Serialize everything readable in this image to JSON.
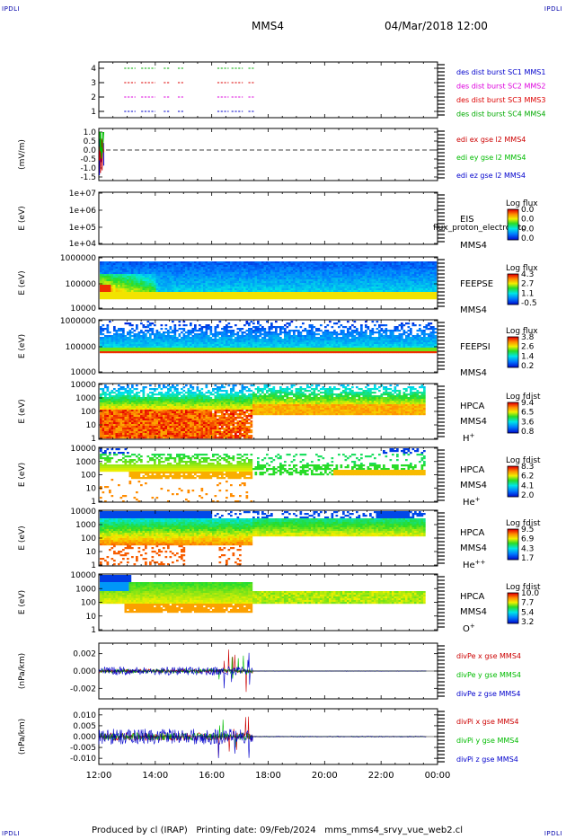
{
  "header": {
    "corner_left_top": "IPDLI",
    "corner_right_top": "IPDLI",
    "corner_left_bottom": "IPDLI",
    "corner_right_bottom": "IPDLI",
    "spacecraft": "MMS4",
    "datetime": "04/Mar/2018 12:00"
  },
  "footer": {
    "text": "Produced by cl (IRAP)   Printing date: 09/Feb/2024   mms_mms4_srvy_vue_web2.cl"
  },
  "colors": {
    "mms1": "#00aa00",
    "mms2": "#dd0000",
    "mms3": "#dd00dd",
    "mms4": "#0000cc",
    "x": "#cc0000",
    "y": "#00bb00",
    "z": "#0000cc"
  },
  "chart_data": {
    "type": "multi-panel time series",
    "x_ticks": [
      "12:00",
      "14:00",
      "16:00",
      "18:00",
      "20:00",
      "22:00",
      "00:00"
    ],
    "x_range_hours": [
      12,
      24
    ],
    "panels": [
      {
        "id": "burst",
        "yticks": [
          "4",
          "3",
          "2",
          "1"
        ],
        "legend": [
          {
            "text": "des dist burst SC1 MMS1",
            "color": "#0000cc"
          },
          {
            "text": "des dist burst SC2 MMS2",
            "color": "#dd00dd"
          },
          {
            "text": "des dist burst SC3 MMS3",
            "color": "#dd0000"
          },
          {
            "text": "des dist burst SC4 MMS4",
            "color": "#00aa00"
          }
        ],
        "burst_intervals_hours": [
          [
            12.9,
            13.3
          ],
          [
            13.5,
            14.0
          ],
          [
            14.3,
            14.5
          ],
          [
            14.8,
            15.0
          ],
          [
            16.2,
            16.6
          ],
          [
            16.7,
            17.1
          ],
          [
            17.3,
            17.5
          ]
        ]
      },
      {
        "id": "edi",
        "ylabel": "(mV/m)",
        "yticks": [
          "1.0",
          "0.5",
          "0.0",
          "-0.5",
          "-1.0",
          "-1.5"
        ],
        "ylim": [
          -1.5,
          1.0
        ],
        "legend": [
          {
            "text": "edi ex gse l2 MMS4",
            "color": "#cc0000"
          },
          {
            "text": "edi ey gse l2 MMS4",
            "color": "#00bb00"
          },
          {
            "text": "edi ez gse l2 MMS4",
            "color": "#0000cc"
          }
        ]
      },
      {
        "id": "eis",
        "ylabel": "E (eV)",
        "yticks": [
          "1e+07",
          "1e+06",
          "1e+05",
          "1e+04"
        ],
        "titles": [
          "EIS",
          "MMS4"
        ],
        "overlay": "flux_proton_electron to",
        "colorbar": {
          "title": "Log flux",
          "ticks": [
            "0.0",
            "0.0",
            "0.0",
            "0.0"
          ]
        }
      },
      {
        "id": "feepse",
        "ylabel": "E (eV)",
        "yticks": [
          "1000000",
          "100000",
          "10000"
        ],
        "titles": [
          "FEEPSE",
          "MMS4"
        ],
        "colorbar": {
          "title": "Log flux",
          "ticks": [
            "4.3",
            "2.7",
            "1.1",
            "-0.5"
          ]
        }
      },
      {
        "id": "feepsi",
        "ylabel": "E (eV)",
        "yticks": [
          "1000000",
          "100000",
          "10000"
        ],
        "titles": [
          "FEEPSI",
          "MMS4"
        ],
        "colorbar": {
          "title": "Log flux",
          "ticks": [
            "3.8",
            "2.6",
            "1.4",
            "0.2"
          ]
        }
      },
      {
        "id": "hpca_h",
        "ylabel": "E (eV)",
        "yticks": [
          "10000",
          "1000",
          "100",
          "10",
          "1"
        ],
        "titles": [
          "HPCA",
          "MMS4"
        ],
        "species": "H",
        "charge": "+",
        "colorbar": {
          "title": "Log fdist",
          "ticks": [
            "9.4",
            "6.5",
            "3.6",
            "0.8"
          ]
        }
      },
      {
        "id": "hpca_he",
        "ylabel": "E (eV)",
        "yticks": [
          "10000",
          "1000",
          "100",
          "10",
          "1"
        ],
        "titles": [
          "HPCA",
          "MMS4"
        ],
        "species": "He",
        "charge": "+",
        "colorbar": {
          "title": "Log fdist",
          "ticks": [
            "8.3",
            "6.2",
            "4.1",
            "2.0"
          ]
        }
      },
      {
        "id": "hpca_hepp",
        "ylabel": "E (eV)",
        "yticks": [
          "10000",
          "1000",
          "100",
          "10",
          "1"
        ],
        "titles": [
          "HPCA",
          "MMS4"
        ],
        "species": "He",
        "charge": "++",
        "colorbar": {
          "title": "Log fdist",
          "ticks": [
            "9.5",
            "6.9",
            "4.3",
            "1.7"
          ]
        }
      },
      {
        "id": "hpca_o",
        "ylabel": "E (eV)",
        "yticks": [
          "10000",
          "1000",
          "100",
          "10",
          "1"
        ],
        "titles": [
          "HPCA",
          "MMS4"
        ],
        "species": "O",
        "charge": "+",
        "colorbar": {
          "title": "Log fdist",
          "ticks": [
            "10.0",
            "7.7",
            "5.4",
            "3.2"
          ]
        }
      },
      {
        "id": "divpe",
        "ylabel": "(nPa/km)",
        "yticks": [
          "0.002",
          "0.000",
          "-0.002"
        ],
        "ylim": [
          -0.003,
          0.003
        ],
        "legend": [
          {
            "text": "divPe x gse MMS4",
            "color": "#cc0000"
          },
          {
            "text": "divPe y gse MMS4",
            "color": "#00bb00"
          },
          {
            "text": "divPe z gse MMS4",
            "color": "#0000cc"
          }
        ]
      },
      {
        "id": "divpi",
        "ylabel": "(nPa/km)",
        "yticks": [
          "0.010",
          "0.005",
          "0.000",
          "-0.005",
          "-0.010"
        ],
        "ylim": [
          -0.012,
          0.012
        ],
        "legend": [
          {
            "text": "divPi x gse MMS4",
            "color": "#cc0000"
          },
          {
            "text": "divPi y gse MMS4",
            "color": "#00bb00"
          },
          {
            "text": "divPi z gse MMS4",
            "color": "#0000cc"
          }
        ]
      }
    ]
  }
}
